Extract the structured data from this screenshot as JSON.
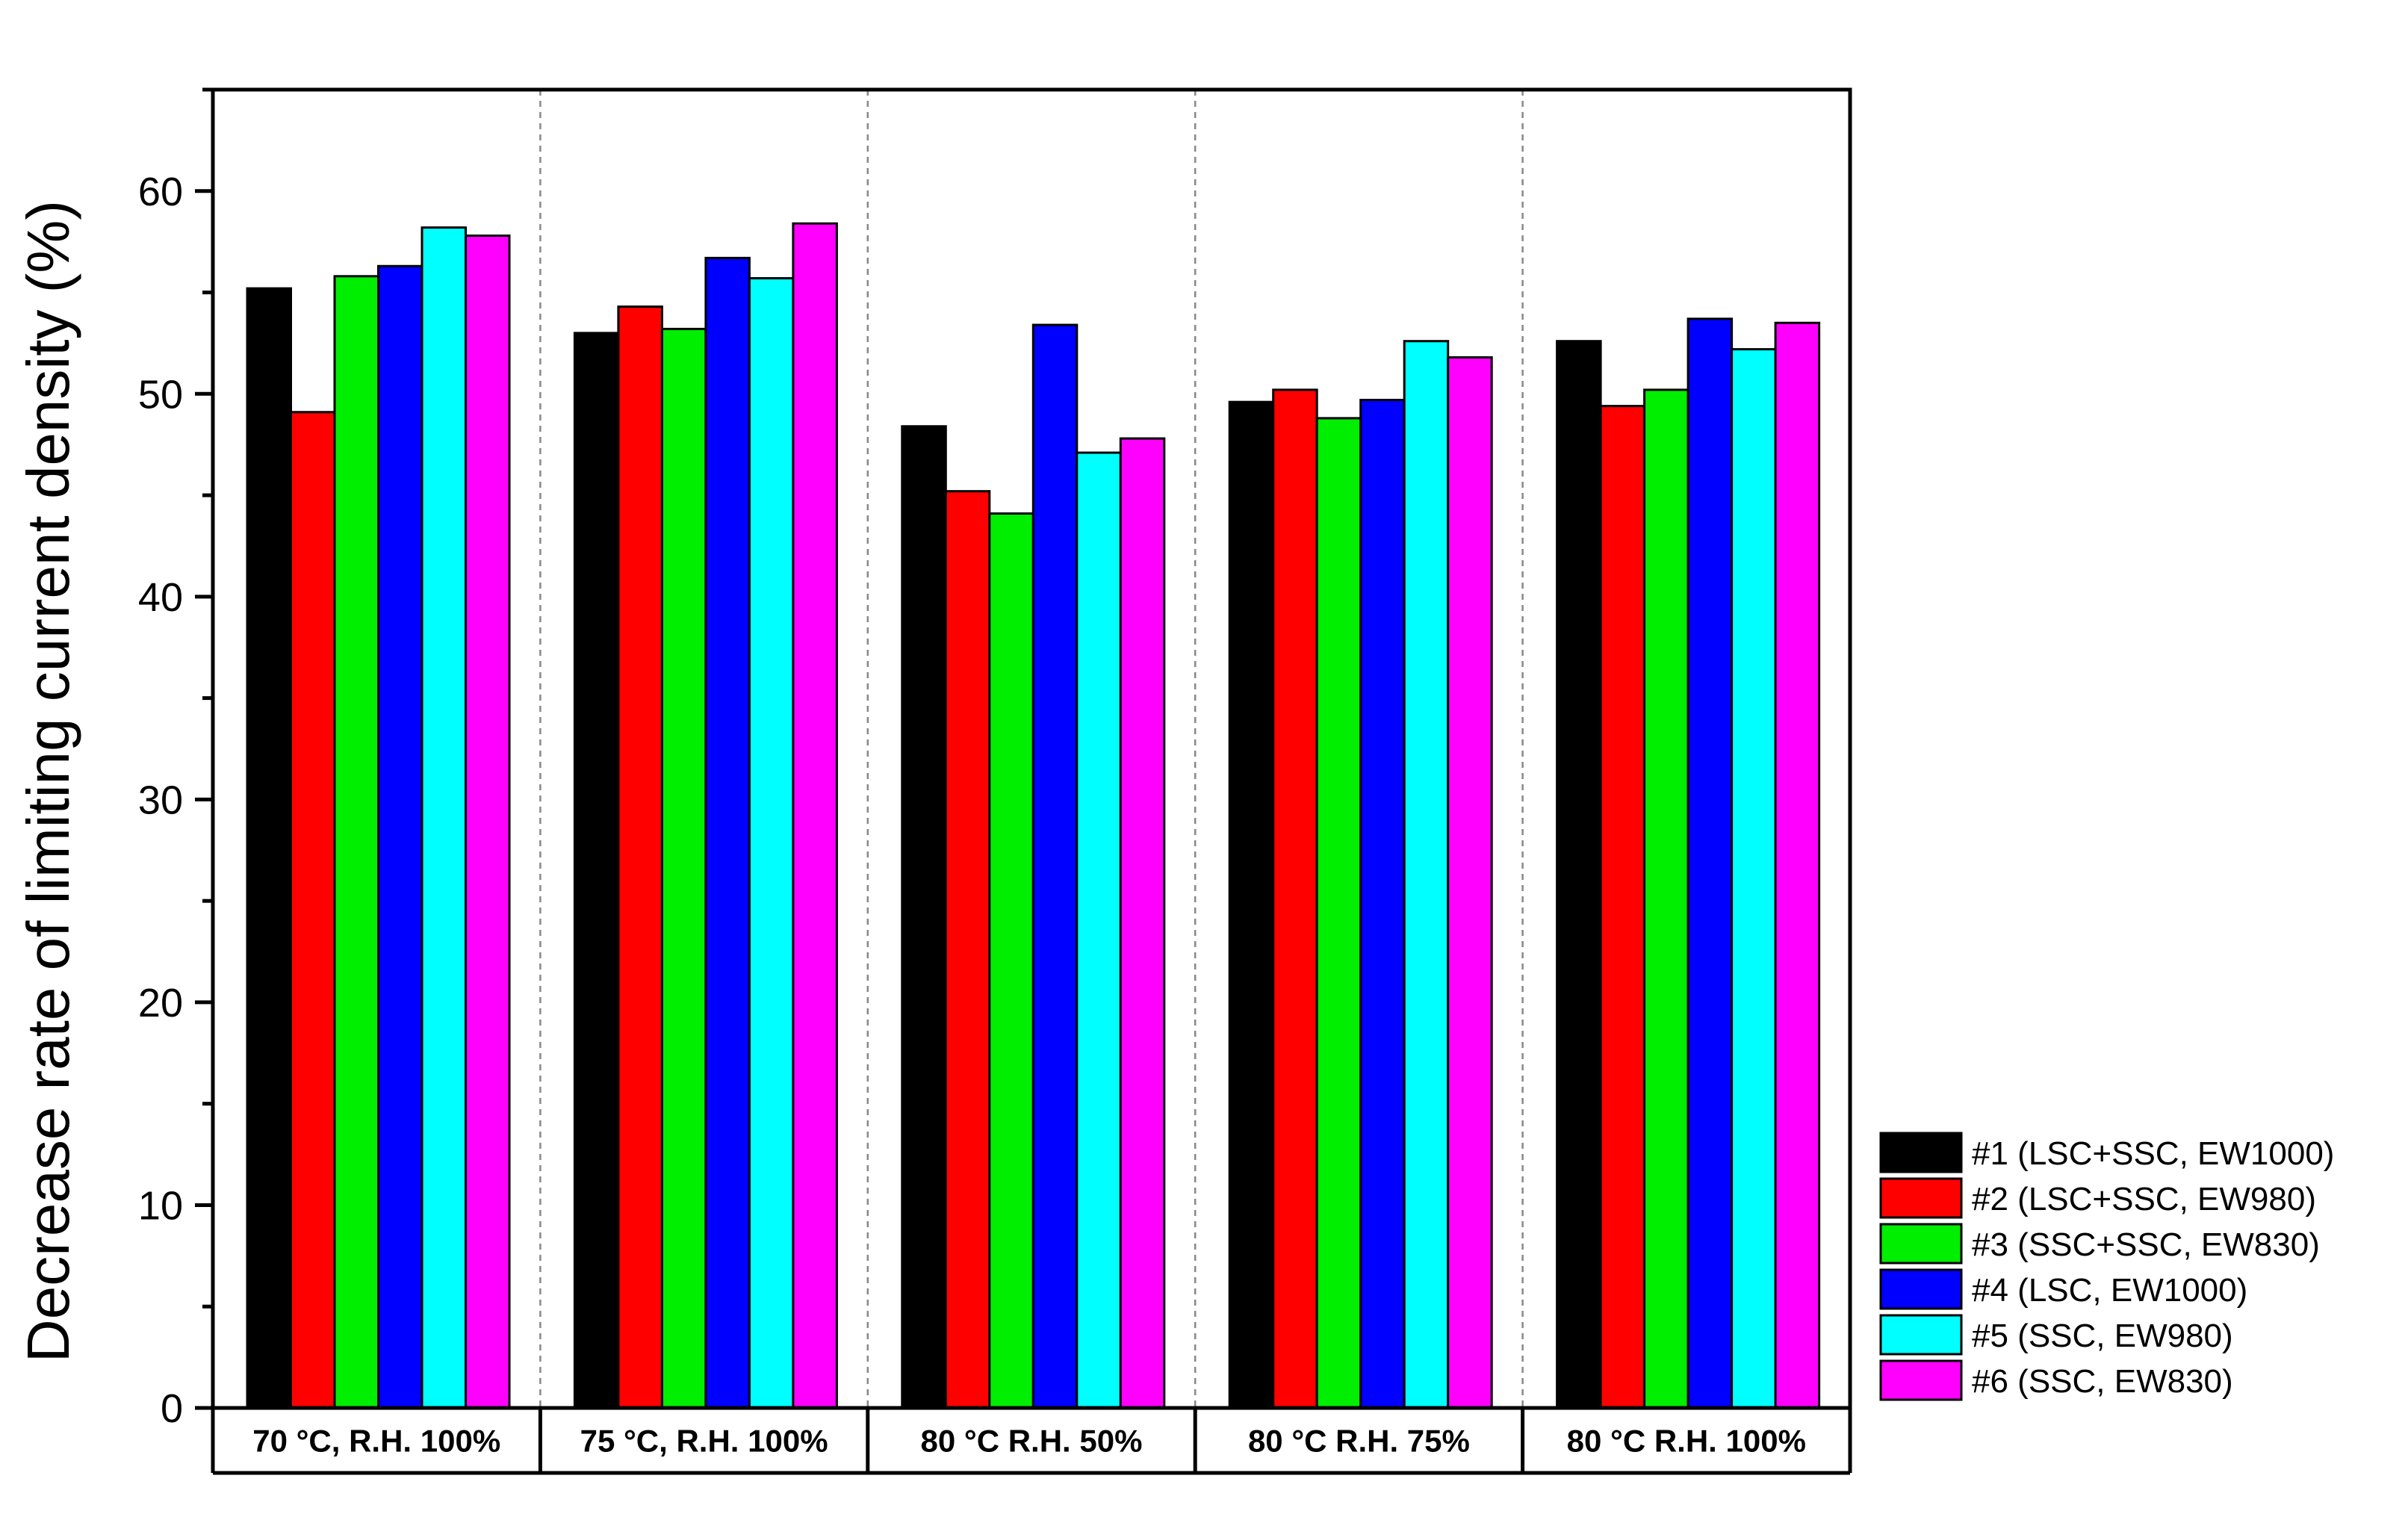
{
  "chart_data": {
    "type": "bar",
    "title": "",
    "xlabel": "",
    "ylabel": "Decrease rate of limiting current density (%)",
    "ylim": [
      0,
      65
    ],
    "yticks": [
      0,
      10,
      20,
      30,
      40,
      50,
      60
    ],
    "ytick_labels": [
      "0",
      "10",
      "20",
      "30",
      "40",
      "50",
      "60"
    ],
    "grid": false,
    "legend_position": "right-bottom",
    "categories": [
      "70 °C, R.H. 100%",
      "75 °C, R.H. 100%",
      "80 °C R.H. 50%",
      "80 °C R.H. 75%",
      "80 °C R.H. 100%"
    ],
    "series": [
      {
        "name": "#1 (LSC+SSC, EW1000)",
        "color": "#000000",
        "values": [
          55.2,
          53.0,
          48.4,
          49.6,
          52.6
        ]
      },
      {
        "name": "#2 (LSC+SSC, EW980)",
        "color": "#ff0000",
        "values": [
          49.1,
          54.3,
          45.2,
          50.2,
          49.4
        ]
      },
      {
        "name": "#3 (SSC+SSC, EW830)",
        "color": "#00ee00",
        "values": [
          55.8,
          53.2,
          44.1,
          48.8,
          50.2
        ]
      },
      {
        "name": "#4 (LSC, EW1000)",
        "color": "#0000ff",
        "values": [
          56.3,
          56.7,
          53.4,
          49.7,
          53.7
        ]
      },
      {
        "name": "#5 (SSC, EW980)",
        "color": "#00ffff",
        "values": [
          58.2,
          55.7,
          47.1,
          52.6,
          52.2
        ]
      },
      {
        "name": "#6 (SSC, EW830)",
        "color": "#ff00ff",
        "values": [
          57.8,
          58.4,
          47.8,
          51.8,
          53.5
        ]
      }
    ]
  }
}
